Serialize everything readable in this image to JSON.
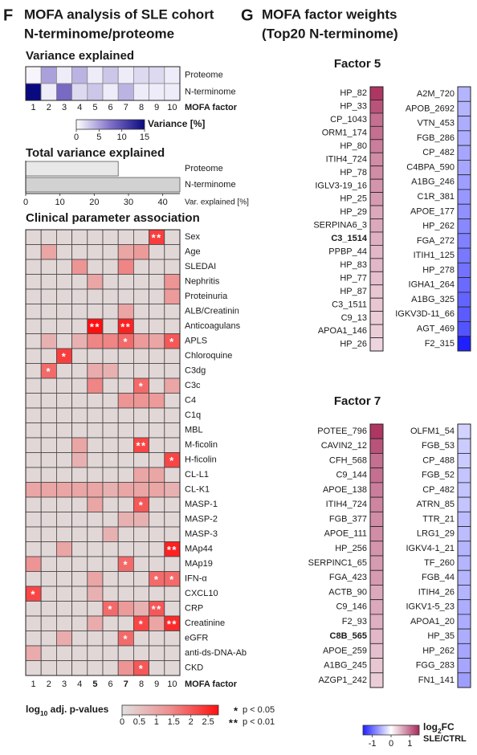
{
  "panels": [
    {
      "letter": "F",
      "title_lines": [
        "MOFA analysis of SLE cohort",
        "N-terminome/proteome"
      ]
    },
    {
      "letter": "G",
      "title_lines": [
        "MOFA factor weights",
        "(Top20 N-terminome)"
      ]
    }
  ],
  "chart_data": [
    {
      "type": "heatmap",
      "title": "Variance explained",
      "rows": [
        "Proteome",
        "N-terminome"
      ],
      "columns": [
        1,
        2,
        3,
        4,
        5,
        6,
        7,
        8,
        9,
        10
      ],
      "x_label": "MOFA factor",
      "values": [
        [
          0.5,
          5,
          1,
          4,
          1,
          3,
          1,
          2,
          2,
          1
        ],
        [
          15,
          1,
          8,
          2,
          3,
          1,
          4,
          1,
          1,
          1
        ]
      ],
      "colorbar": {
        "label": "Variance [%]",
        "lim": [
          0,
          15
        ],
        "ticks": [
          0,
          5,
          10,
          15
        ],
        "colors": [
          "#ffffff",
          "#8070c8",
          "#0a0a80"
        ]
      }
    },
    {
      "type": "bar",
      "title": "Total variance explained",
      "categories": [
        "Proteome",
        "N-terminome"
      ],
      "values": [
        27,
        45
      ],
      "colors": [
        "#e8e8e8",
        "#d2d2d2"
      ],
      "xlim": [
        0,
        45
      ],
      "xticks": [
        0,
        10,
        20,
        30,
        40
      ],
      "x_label": "Var. explained [%]"
    },
    {
      "type": "heatmap",
      "title": "Clinical parameter association",
      "rows": [
        "Sex",
        "Age",
        "SLEDAI",
        "Nephritis",
        "Proteinuria",
        "ALB/Creatinin",
        "Anticoagulans",
        "APLS",
        "Chloroquine",
        "C3dg",
        "C3c",
        "C4",
        "C1q",
        "MBL",
        "M-ficolin",
        "H-ficolin",
        "CL-L1",
        "CL-K1",
        "MASP-1",
        "MASP-2",
        "MASP-3",
        "MAp44",
        "MAp19",
        "IFN-α",
        "CXCL10",
        "CRP",
        "Creatinine",
        "eGFR",
        "anti-ds-DNA-Ab",
        "CKD"
      ],
      "columns": [
        1,
        2,
        3,
        4,
        5,
        6,
        7,
        8,
        9,
        10
      ],
      "bold_columns": [
        5,
        7
      ],
      "x_label": "MOFA factor",
      "values": [
        [
          0.15,
          0.15,
          0.15,
          0.15,
          0.15,
          0.15,
          0.15,
          0.15,
          2.3,
          0.15
        ],
        [
          0.15,
          1,
          0.15,
          0.15,
          0.15,
          0.15,
          1,
          1.2,
          0.15,
          0.15
        ],
        [
          0.15,
          0.15,
          0.15,
          1.3,
          0.15,
          0.15,
          1.5,
          0.15,
          0.15,
          0.15
        ],
        [
          0.15,
          0.15,
          0.15,
          0.15,
          1,
          0.15,
          0.15,
          0.15,
          0.15,
          1.3
        ],
        [
          0.15,
          0.15,
          0.15,
          0.15,
          0.15,
          0.15,
          0.15,
          0.15,
          0.15,
          1.2
        ],
        [
          0.15,
          0.15,
          0.15,
          0.15,
          0.15,
          0.15,
          1,
          0.15,
          0.15,
          0.15
        ],
        [
          0.15,
          0.15,
          0.15,
          0.15,
          2.8,
          0.15,
          2.6,
          0.15,
          0.15,
          0.15
        ],
        [
          0.15,
          0.8,
          0.15,
          0.8,
          1.5,
          1.5,
          1.8,
          1.2,
          1,
          2
        ],
        [
          0.15,
          0.15,
          2.3,
          0.15,
          0.15,
          0.15,
          0.15,
          0.15,
          0.15,
          0.15
        ],
        [
          0.15,
          1.8,
          0.15,
          0.15,
          0.9,
          0.8,
          0.15,
          0.15,
          0.15,
          0.15
        ],
        [
          0.15,
          0.15,
          0.15,
          0.15,
          1.5,
          0.15,
          0.15,
          1.8,
          0.15,
          1
        ],
        [
          0.15,
          0.15,
          0.15,
          0.15,
          0.15,
          0.15,
          1.3,
          1.3,
          1.2,
          0.15
        ],
        [
          0.15,
          0.15,
          0.15,
          0.15,
          0.15,
          0.15,
          0.15,
          0.15,
          0.15,
          0.15
        ],
        [
          0.15,
          0.15,
          0.15,
          0.15,
          0.15,
          0.15,
          0.15,
          0.15,
          0.15,
          0.15
        ],
        [
          0.15,
          0.15,
          0.15,
          1,
          0.15,
          0.15,
          0.15,
          2.2,
          0.15,
          0.15
        ],
        [
          0.15,
          0.15,
          0.15,
          0.8,
          0.15,
          0.15,
          0.15,
          0.15,
          0.15,
          2.2
        ],
        [
          0.15,
          0.15,
          0.15,
          0.15,
          0.15,
          0.15,
          0.15,
          1,
          1,
          0.15
        ],
        [
          1,
          1,
          1,
          1,
          1,
          0.8,
          1,
          1,
          1,
          0.8
        ],
        [
          0.15,
          0.15,
          0.15,
          0.15,
          1,
          0.15,
          0.15,
          2,
          0.15,
          0.15
        ],
        [
          0.15,
          0.15,
          0.15,
          0.15,
          0.15,
          0.15,
          0.8,
          0.8,
          0.15,
          0.15
        ],
        [
          0.15,
          0.15,
          0.15,
          0.15,
          0.15,
          0.8,
          0.15,
          0.15,
          0.15,
          0.15
        ],
        [
          0.15,
          0.15,
          1,
          0.15,
          0.15,
          0.15,
          0.15,
          0.15,
          0.15,
          2.6
        ],
        [
          1.3,
          0.15,
          0.15,
          0.15,
          0.15,
          0.15,
          1.8,
          0.15,
          0.15,
          0.15
        ],
        [
          0.15,
          0.15,
          0.15,
          0.15,
          1,
          0.15,
          0.15,
          0.15,
          1.8,
          1.8
        ],
        [
          2.2,
          0.15,
          0.15,
          0.15,
          0.8,
          0.15,
          0.15,
          0.15,
          0.15,
          0.15
        ],
        [
          0.15,
          0.15,
          0.15,
          0.15,
          0.15,
          1.8,
          1.2,
          0.8,
          2,
          0.15
        ],
        [
          0.15,
          0.15,
          0.15,
          0.15,
          0.9,
          0.15,
          0.15,
          2.2,
          1,
          2.5
        ],
        [
          0.15,
          0.15,
          0.9,
          0.15,
          0.15,
          0.15,
          1.8,
          0.15,
          0.15,
          0.15
        ],
        [
          0.9,
          0.15,
          0.15,
          0.15,
          0.15,
          0.15,
          0.15,
          0.15,
          0.15,
          0.15
        ],
        [
          0.15,
          0.15,
          0.15,
          0.15,
          0.15,
          0.15,
          1.3,
          2,
          0.15,
          0.15
        ]
      ],
      "significance": [
        [
          null,
          null,
          null,
          null,
          null,
          null,
          null,
          null,
          "**",
          null
        ],
        [
          null,
          null,
          null,
          null,
          null,
          null,
          null,
          null,
          null,
          null
        ],
        [
          null,
          null,
          null,
          null,
          null,
          null,
          null,
          null,
          null,
          null
        ],
        [
          null,
          null,
          null,
          null,
          null,
          null,
          null,
          null,
          null,
          null
        ],
        [
          null,
          null,
          null,
          null,
          null,
          null,
          null,
          null,
          null,
          null
        ],
        [
          null,
          null,
          null,
          null,
          null,
          null,
          null,
          null,
          null,
          null
        ],
        [
          null,
          null,
          null,
          null,
          "**",
          null,
          "**",
          null,
          null,
          null
        ],
        [
          null,
          null,
          null,
          null,
          null,
          null,
          "*",
          null,
          null,
          "*"
        ],
        [
          null,
          null,
          "*",
          null,
          null,
          null,
          null,
          null,
          null,
          null
        ],
        [
          null,
          "*",
          null,
          null,
          null,
          null,
          null,
          null,
          null,
          null
        ],
        [
          null,
          null,
          null,
          null,
          null,
          null,
          null,
          "*",
          null,
          null
        ],
        [
          null,
          null,
          null,
          null,
          null,
          null,
          null,
          null,
          null,
          null
        ],
        [
          null,
          null,
          null,
          null,
          null,
          null,
          null,
          null,
          null,
          null
        ],
        [
          null,
          null,
          null,
          null,
          null,
          null,
          null,
          null,
          null,
          null
        ],
        [
          null,
          null,
          null,
          null,
          null,
          null,
          null,
          "**",
          null,
          null
        ],
        [
          null,
          null,
          null,
          null,
          null,
          null,
          null,
          null,
          null,
          "*"
        ],
        [
          null,
          null,
          null,
          null,
          null,
          null,
          null,
          null,
          null,
          null
        ],
        [
          null,
          null,
          null,
          null,
          null,
          null,
          null,
          null,
          null,
          null
        ],
        [
          null,
          null,
          null,
          null,
          null,
          null,
          null,
          "*",
          null,
          null
        ],
        [
          null,
          null,
          null,
          null,
          null,
          null,
          null,
          null,
          null,
          null
        ],
        [
          null,
          null,
          null,
          null,
          null,
          null,
          null,
          null,
          null,
          null
        ],
        [
          null,
          null,
          null,
          null,
          null,
          null,
          null,
          null,
          null,
          "**"
        ],
        [
          null,
          null,
          null,
          null,
          null,
          null,
          "*",
          null,
          null,
          null
        ],
        [
          null,
          null,
          null,
          null,
          null,
          null,
          null,
          null,
          "*",
          "*"
        ],
        [
          "*",
          null,
          null,
          null,
          null,
          null,
          null,
          null,
          null,
          null
        ],
        [
          null,
          null,
          null,
          null,
          null,
          "*",
          null,
          null,
          "**",
          null
        ],
        [
          null,
          null,
          null,
          null,
          null,
          null,
          null,
          "*",
          null,
          "**"
        ],
        [
          null,
          null,
          null,
          null,
          null,
          null,
          "*",
          null,
          null,
          null
        ],
        [
          null,
          null,
          null,
          null,
          null,
          null,
          null,
          null,
          null,
          null
        ],
        [
          null,
          null,
          null,
          null,
          null,
          null,
          null,
          "*",
          null,
          null
        ]
      ],
      "colorbar": {
        "label": {
          "main": "log",
          "sub": "10",
          "rest": " adj. p-values"
        },
        "lim": [
          0,
          2.8
        ],
        "ticks": [
          0,
          0.5,
          1,
          1.5,
          2,
          2.5
        ],
        "colors": [
          "#e0e0e0",
          "#ee8e8e",
          "#ff1010"
        ]
      },
      "significance_legend": [
        {
          "symbol": "*",
          "text": "p < 0.05"
        },
        {
          "symbol": "**",
          "text": "p < 0.01"
        }
      ]
    },
    {
      "type": "weights",
      "title": "Factor 5",
      "columns": [
        {
          "labels": [
            "HP_82",
            "HP_33",
            "CP_1043",
            "ORM1_174",
            "HP_80",
            "ITIH4_724",
            "HP_78",
            "IGLV3-19_16",
            "HP_25",
            "HP_29",
            "SERPINA6_3",
            "C3_1514",
            "PPBP_44",
            "HP_83",
            "HP_77",
            "HP_87",
            "C3_1511",
            "C9_13",
            "APOA1_146",
            "HP_26"
          ],
          "values": [
            1.4,
            1.2,
            1.0,
            1.0,
            0.9,
            0.8,
            0.8,
            0.75,
            0.7,
            0.6,
            0.6,
            0.55,
            0.5,
            0.5,
            0.45,
            0.4,
            0.4,
            0.35,
            0.35,
            0.3
          ],
          "bold": 11
        },
        {
          "labels": [
            "A2M_720",
            "APOB_2692",
            "VTN_453",
            "FGB_286",
            "CP_482",
            "C4BPA_590",
            "A1BG_246",
            "C1R_381",
            "APOE_177",
            "HP_262",
            "FGA_272",
            "ITIH1_125",
            "HP_278",
            "IGHA1_264",
            "A1BG_325",
            "IGKV3D-11_66",
            "AGT_469",
            "F2_315"
          ],
          "values": [
            -0.5,
            -0.5,
            -0.55,
            -0.55,
            -0.6,
            -0.6,
            -0.65,
            -0.7,
            -0.75,
            -0.8,
            -0.85,
            -0.9,
            -0.95,
            -1.0,
            -1.05,
            -1.1,
            -1.15,
            -1.6
          ]
        }
      ]
    },
    {
      "type": "weights",
      "title": "Factor 7",
      "columns": [
        {
          "labels": [
            "POTEE_796",
            "CAVIN2_12",
            "CFH_568",
            "C9_144",
            "APOE_138",
            "ITIH4_724",
            "FGB_377",
            "APOE_111",
            "HP_256",
            "SERPINC1_65",
            "FGA_423",
            "ACTB_90",
            "C9_146",
            "F2_93",
            "C8B_565",
            "APOE_259",
            "A1BG_245",
            "AZGP1_242"
          ],
          "values": [
            1.4,
            1.2,
            1.0,
            1.0,
            0.9,
            0.85,
            0.8,
            0.8,
            0.75,
            0.7,
            0.7,
            0.6,
            0.6,
            0.55,
            0.5,
            0.45,
            0.4,
            0.35
          ],
          "bold": 14
        },
        {
          "labels": [
            "OLFM1_54",
            "FGB_53",
            "CP_488",
            "FGB_52",
            "CP_482",
            "ATRN_85",
            "TTR_21",
            "LRG1_29",
            "IGKV4-1_21",
            "TF_260",
            "FGB_44",
            "ITIH4_26",
            "IGKV1-5_23",
            "APOA1_20",
            "HP_35",
            "HP_262",
            "FGG_283",
            "FN1_141"
          ],
          "values": [
            -0.3,
            -0.35,
            -0.35,
            -0.4,
            -0.4,
            -0.4,
            -0.45,
            -0.45,
            -0.5,
            -0.5,
            -0.5,
            -0.5,
            -0.55,
            -0.55,
            -0.55,
            -0.6,
            -0.6,
            -0.65
          ]
        }
      ]
    },
    {
      "type": "colorbar",
      "label": {
        "main": "log",
        "sub": "2",
        "rest": "FC"
      },
      "label2": "SLE/CTRL",
      "lim": [
        -1.5,
        1.5
      ],
      "ticks": [
        -1,
        0,
        1
      ],
      "colors": [
        "#2020ff",
        "#ffffff",
        "#a82858"
      ]
    }
  ]
}
